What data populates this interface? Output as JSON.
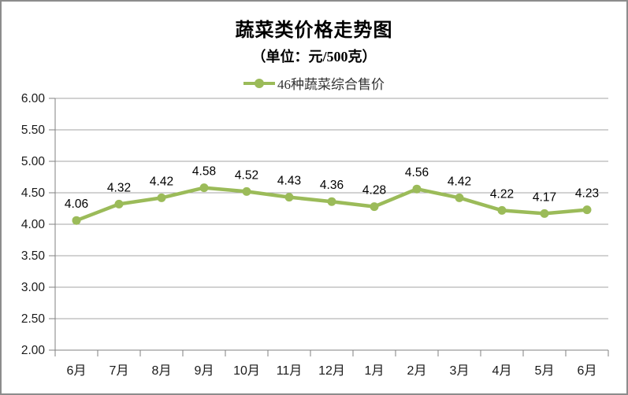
{
  "figure": {
    "background": "#FFFFFF",
    "border_color": "#8C8C8C"
  },
  "chart_data": {
    "type": "line",
    "title": "蔬菜类价格走势图",
    "subtitle": "（单位：元/500克）",
    "legend_position": "top",
    "categories": [
      "6月",
      "7月",
      "8月",
      "9月",
      "10月",
      "11月",
      "12月",
      "1月",
      "2月",
      "3月",
      "4月",
      "5月",
      "6月"
    ],
    "series": [
      {
        "name": "46种蔬菜综合售价",
        "color": "#9BBB59",
        "values": [
          4.06,
          4.32,
          4.42,
          4.58,
          4.52,
          4.43,
          4.36,
          4.28,
          4.56,
          4.42,
          4.22,
          4.17,
          4.23
        ],
        "data_labels": [
          "4.06",
          "4.32",
          "4.42",
          "4.58",
          "4.52",
          "4.43",
          "4.36",
          "4.28",
          "4.56",
          "4.42",
          "4.22",
          "4.17",
          "4.23"
        ]
      }
    ],
    "xlabel": "",
    "ylabel": "",
    "ylim": [
      2.0,
      6.0
    ],
    "ytick_labels": [
      "6.00",
      "5.50",
      "5.00",
      "4.50",
      "4.00",
      "3.50",
      "3.00",
      "2.50",
      "2.00"
    ],
    "grid": true,
    "gridline_color": "#A6A6A6",
    "axis_color": "#808080",
    "tick_label_color": "#1A1A1A",
    "data_label_color": "#000000"
  }
}
